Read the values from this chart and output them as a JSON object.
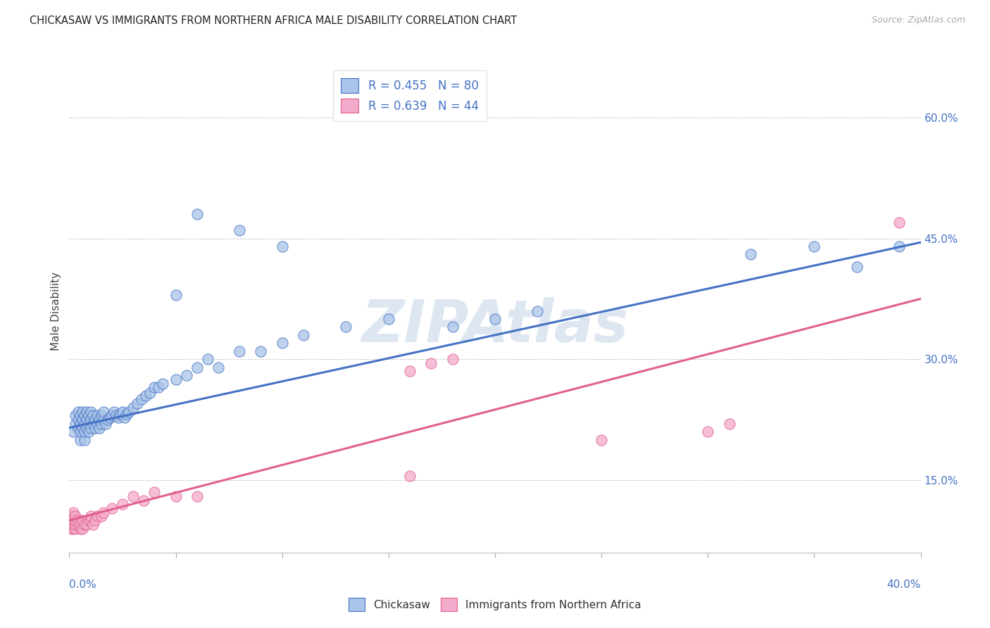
{
  "title": "CHICKASAW VS IMMIGRANTS FROM NORTHERN AFRICA MALE DISABILITY CORRELATION CHART",
  "source": "Source: ZipAtlas.com",
  "ylabel": "Male Disability",
  "xlim": [
    0.0,
    0.4
  ],
  "ylim": [
    0.06,
    0.66
  ],
  "blue_color": "#4472C4",
  "blue_fill": "#A9C4E8",
  "pink_color": "#E06090",
  "pink_fill": "#F4AACA",
  "blue_R": 0.455,
  "blue_N": 80,
  "pink_R": 0.639,
  "pink_N": 44,
  "watermark": "ZIPAtlas",
  "legend_label_blue": "Chickasaw",
  "legend_label_pink": "Immigrants from Northern Africa",
  "background_color": "#FFFFFF",
  "grid_color": "#CCCCCC",
  "right_yticks": [
    0.15,
    0.3,
    0.45,
    0.6
  ],
  "right_yticklabels": [
    "15.0%",
    "30.0%",
    "45.0%",
    "60.0%"
  ],
  "blue_line_y_at_0": 0.215,
  "blue_line_y_at_040": 0.445,
  "pink_line_y_at_0": 0.1,
  "pink_line_y_at_040": 0.375,
  "blue_scatter_x": [
    0.002,
    0.003,
    0.003,
    0.004,
    0.004,
    0.004,
    0.005,
    0.005,
    0.005,
    0.005,
    0.006,
    0.006,
    0.006,
    0.007,
    0.007,
    0.007,
    0.007,
    0.008,
    0.008,
    0.008,
    0.009,
    0.009,
    0.009,
    0.01,
    0.01,
    0.01,
    0.011,
    0.011,
    0.012,
    0.012,
    0.013,
    0.013,
    0.014,
    0.014,
    0.015,
    0.015,
    0.016,
    0.016,
    0.017,
    0.018,
    0.019,
    0.02,
    0.021,
    0.022,
    0.023,
    0.024,
    0.025,
    0.026,
    0.027,
    0.028,
    0.03,
    0.032,
    0.034,
    0.036,
    0.038,
    0.04,
    0.042,
    0.044,
    0.05,
    0.055,
    0.06,
    0.065,
    0.07,
    0.08,
    0.09,
    0.1,
    0.11,
    0.13,
    0.15,
    0.18,
    0.2,
    0.22,
    0.06,
    0.08,
    0.1,
    0.32,
    0.35,
    0.37,
    0.39,
    0.05
  ],
  "blue_scatter_y": [
    0.21,
    0.22,
    0.23,
    0.215,
    0.225,
    0.235,
    0.2,
    0.21,
    0.22,
    0.23,
    0.215,
    0.225,
    0.235,
    0.2,
    0.21,
    0.22,
    0.23,
    0.215,
    0.225,
    0.235,
    0.21,
    0.22,
    0.23,
    0.215,
    0.225,
    0.235,
    0.22,
    0.23,
    0.215,
    0.225,
    0.22,
    0.23,
    0.215,
    0.225,
    0.22,
    0.23,
    0.225,
    0.235,
    0.22,
    0.225,
    0.228,
    0.23,
    0.235,
    0.23,
    0.228,
    0.232,
    0.235,
    0.228,
    0.232,
    0.235,
    0.24,
    0.245,
    0.25,
    0.255,
    0.258,
    0.265,
    0.265,
    0.27,
    0.275,
    0.28,
    0.29,
    0.3,
    0.29,
    0.31,
    0.31,
    0.32,
    0.33,
    0.34,
    0.35,
    0.34,
    0.35,
    0.36,
    0.48,
    0.46,
    0.44,
    0.43,
    0.44,
    0.415,
    0.44,
    0.38
  ],
  "pink_scatter_x": [
    0.001,
    0.001,
    0.001,
    0.001,
    0.002,
    0.002,
    0.002,
    0.002,
    0.002,
    0.003,
    0.003,
    0.003,
    0.003,
    0.004,
    0.004,
    0.005,
    0.005,
    0.006,
    0.006,
    0.007,
    0.008,
    0.009,
    0.01,
    0.01,
    0.011,
    0.012,
    0.013,
    0.015,
    0.016,
    0.02,
    0.025,
    0.03,
    0.035,
    0.04,
    0.05,
    0.06,
    0.16,
    0.17,
    0.18,
    0.25,
    0.3,
    0.31,
    0.39,
    0.16
  ],
  "pink_scatter_y": [
    0.09,
    0.095,
    0.1,
    0.105,
    0.09,
    0.095,
    0.1,
    0.105,
    0.11,
    0.09,
    0.095,
    0.1,
    0.105,
    0.095,
    0.1,
    0.09,
    0.095,
    0.09,
    0.1,
    0.095,
    0.095,
    0.1,
    0.1,
    0.105,
    0.095,
    0.1,
    0.105,
    0.105,
    0.11,
    0.115,
    0.12,
    0.13,
    0.125,
    0.135,
    0.13,
    0.13,
    0.285,
    0.295,
    0.3,
    0.2,
    0.21,
    0.22,
    0.47,
    0.155
  ]
}
